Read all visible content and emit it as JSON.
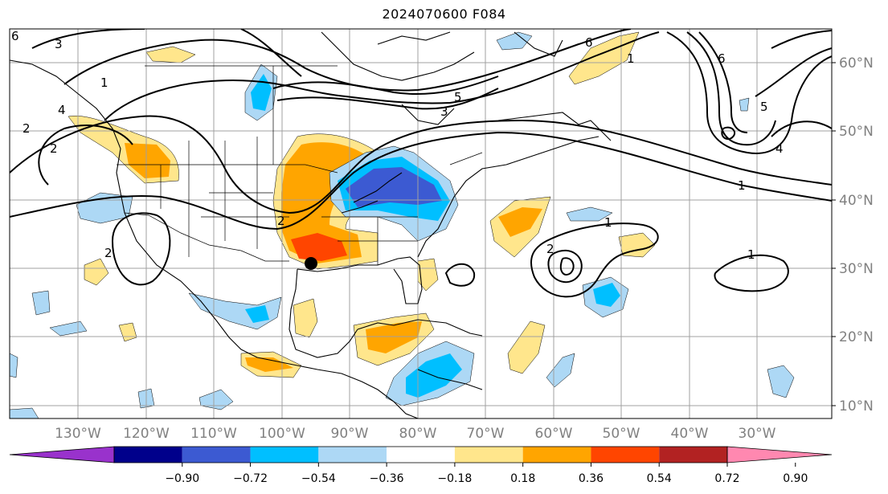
{
  "title": "2024070600 F084",
  "map": {
    "projection": "cylindrical",
    "lon_range": [
      -145,
      -24
    ],
    "lat_range": [
      7.5,
      65
    ],
    "gridlines": true,
    "lon_labels": [
      "130°W",
      "120°W",
      "110°W",
      "100°W",
      "90°W",
      "80°W",
      "70°W",
      "60°W",
      "50°W",
      "40°W",
      "30°W"
    ],
    "lat_labels": [
      "60°N",
      "50°N",
      "40°N",
      "30°N",
      "20°N",
      "10°N"
    ],
    "marker": {
      "lon": -96,
      "lat": 30.6,
      "color": "#000000"
    }
  },
  "colorbar": {
    "levels": [
      "−0.90",
      "−0.72",
      "−0.54",
      "−0.36",
      "−0.18",
      "0.18",
      "0.36",
      "0.54",
      "0.72",
      "0.90"
    ],
    "colors": [
      "#9932cc",
      "#00008b",
      "#3c5ad2",
      "#00bfff",
      "#add8f5",
      "#ffffff",
      "#ffe68c",
      "#ffa500",
      "#ff4500",
      "#b22222",
      "#ff88b0"
    ],
    "extend": "both"
  },
  "contour_labels": [
    "1",
    "1",
    "1",
    "1",
    "1",
    "2",
    "2",
    "2",
    "2",
    "2",
    "3",
    "3",
    "4",
    "4",
    "5",
    "5",
    "6",
    "6",
    "6"
  ]
}
